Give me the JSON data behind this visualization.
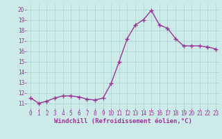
{
  "x": [
    0,
    1,
    2,
    3,
    4,
    5,
    6,
    7,
    8,
    9,
    10,
    11,
    12,
    13,
    14,
    15,
    16,
    17,
    18,
    19,
    20,
    21,
    22,
    23
  ],
  "y": [
    11.5,
    11.0,
    11.2,
    11.5,
    11.7,
    11.7,
    11.6,
    11.4,
    11.3,
    11.5,
    12.9,
    15.0,
    17.2,
    18.5,
    19.0,
    19.9,
    18.5,
    18.2,
    17.2,
    16.5,
    16.5,
    16.5,
    16.4,
    16.2
  ],
  "line_color": "#993399",
  "marker": "+",
  "marker_size": 4,
  "line_width": 1.0,
  "bg_color": "#cceae7",
  "grid_color": "#aad4d0",
  "tick_color": "#993399",
  "xlabel": "Windchill (Refroidissement éolien,°C)",
  "xlabel_color": "#993399",
  "ylim": [
    10.5,
    20.5
  ],
  "xlim": [
    -0.5,
    23.5
  ],
  "yticks": [
    11,
    12,
    13,
    14,
    15,
    16,
    17,
    18,
    19,
    20
  ],
  "xticks": [
    0,
    1,
    2,
    3,
    4,
    5,
    6,
    7,
    8,
    9,
    10,
    11,
    12,
    13,
    14,
    15,
    16,
    17,
    18,
    19,
    20,
    21,
    22,
    23
  ],
  "tick_fontsize": 5.5,
  "xlabel_fontsize": 6.5
}
